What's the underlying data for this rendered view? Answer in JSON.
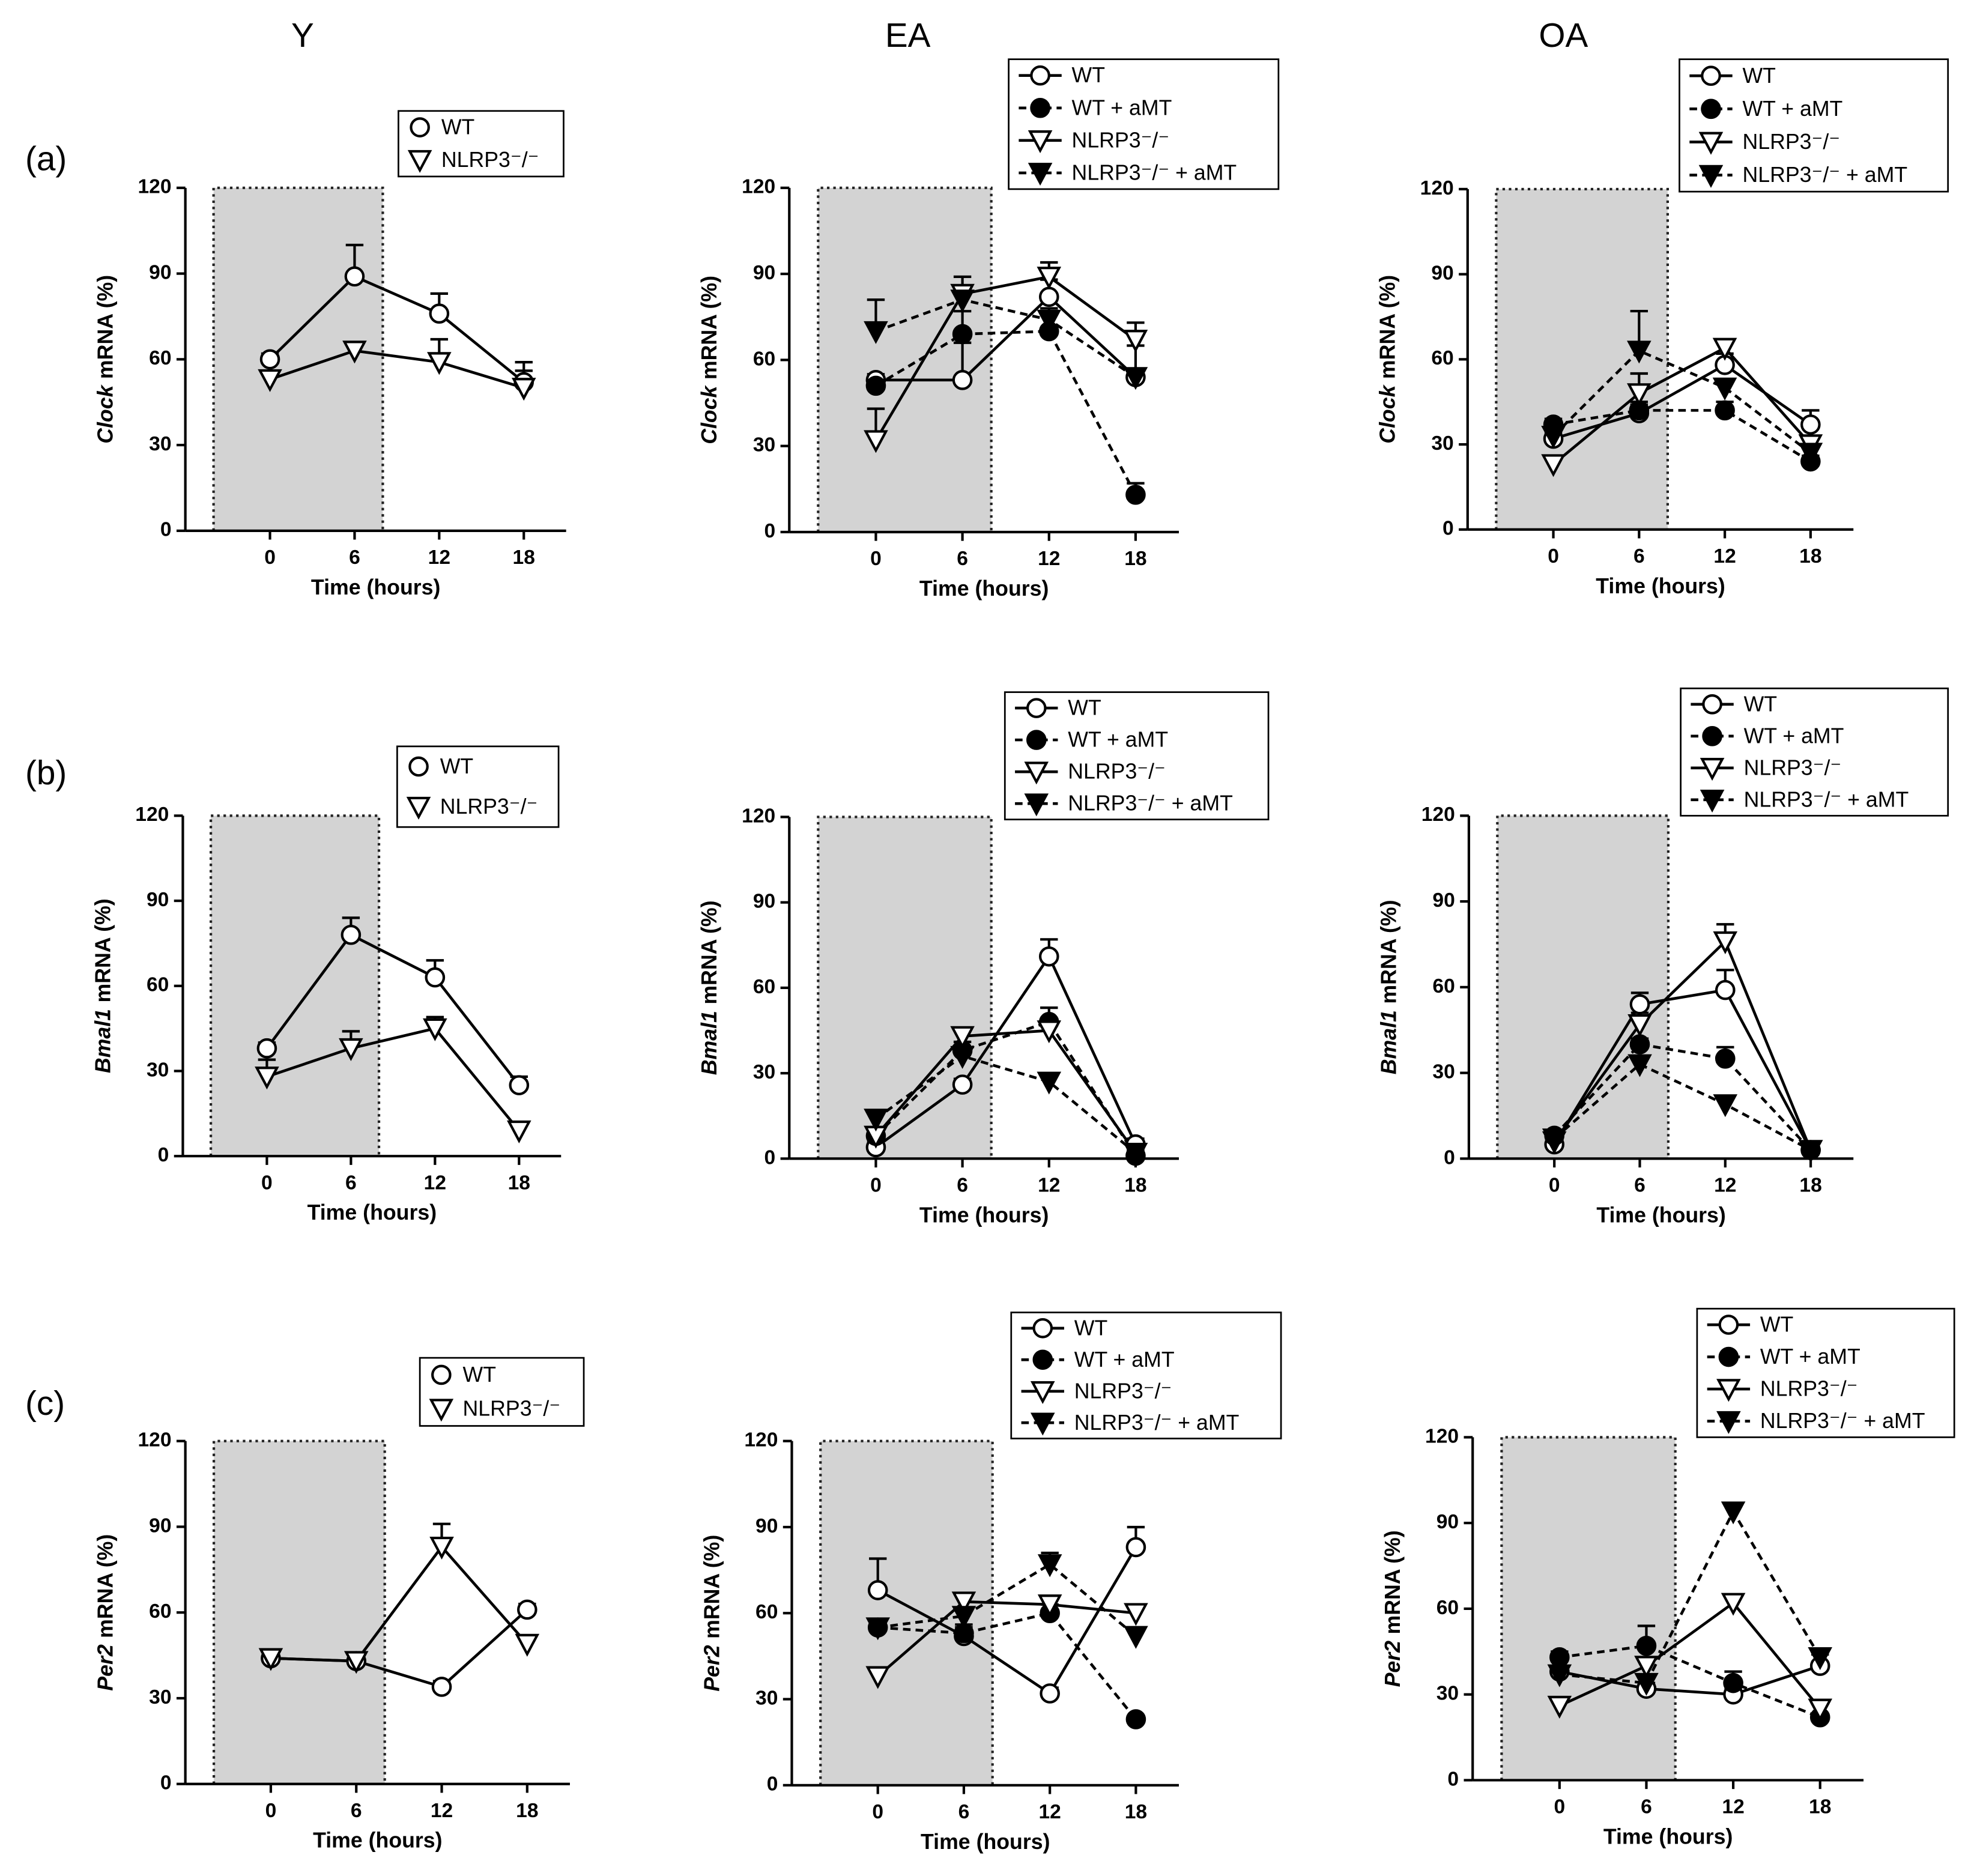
{
  "column_titles": [
    "Y",
    "EA",
    "OA"
  ],
  "panel_labels": [
    "(a)",
    "(b)",
    "(c)"
  ],
  "chart_data": [
    {
      "type": "line",
      "ylabel": [
        "Clock",
        "mRNA (%)"
      ],
      "xlabel": "Time (hours)",
      "x": [
        0,
        6,
        12,
        18
      ],
      "xticks": [
        0,
        6,
        12,
        18
      ],
      "xlim": [
        -6,
        21
      ],
      "ylim": [
        0,
        120
      ],
      "yticks": [
        0,
        30,
        60,
        90,
        120
      ],
      "dark_period": [
        -4,
        8
      ],
      "legend_line": false,
      "series": [
        {
          "name": "WT",
          "color": "#000000",
          "marker": "open-circle",
          "line_style": "solid",
          "values": [
            60,
            89,
            76,
            52
          ],
          "errors": [
            2,
            11,
            7,
            4
          ]
        },
        {
          "name": "NLRP3⁻/⁻",
          "color": "#000000",
          "marker": "open-triangle",
          "line_style": "solid",
          "values": [
            53,
            63,
            59,
            50
          ],
          "errors": [
            2,
            2,
            8,
            9
          ]
        }
      ]
    },
    {
      "type": "line",
      "ylabel": [
        "Clock",
        "mRNA (%)"
      ],
      "xlabel": "Time (hours)",
      "x": [
        0,
        6,
        12,
        18
      ],
      "xticks": [
        0,
        6,
        12,
        18
      ],
      "xlim": [
        -6,
        21
      ],
      "ylim": [
        0,
        120
      ],
      "yticks": [
        0,
        30,
        60,
        90,
        120
      ],
      "dark_period": [
        -4,
        8
      ],
      "legend_line": true,
      "series": [
        {
          "name": "WT",
          "color": "#000000",
          "marker": "open-circle",
          "line_style": "solid",
          "values": [
            53,
            53,
            82,
            54
          ],
          "errors": [
            2,
            13,
            6,
            11
          ]
        },
        {
          "name": "WT + aMT",
          "color": "#000000",
          "marker": "filled-circle",
          "line_style": "dashed",
          "values": [
            51,
            69,
            70,
            13
          ],
          "errors": [
            2,
            8,
            6,
            4
          ]
        },
        {
          "name": "NLRP3⁻/⁻",
          "color": "#000000",
          "marker": "open-triangle",
          "line_style": "solid",
          "values": [
            32,
            83,
            89,
            67
          ],
          "errors": [
            11,
            6,
            5,
            6
          ]
        },
        {
          "name": "NLRP3⁻/⁻ + aMT",
          "color": "#000000",
          "marker": "filled-triangle",
          "line_style": "dashed",
          "values": [
            70,
            81,
            74,
            54
          ],
          "errors": [
            11,
            4,
            4,
            3
          ]
        }
      ]
    },
    {
      "type": "line",
      "ylabel": [
        "Clock",
        "mRNA (%)"
      ],
      "xlabel": "Time (hours)",
      "x": [
        0,
        6,
        12,
        18
      ],
      "xticks": [
        0,
        6,
        12,
        18
      ],
      "xlim": [
        -6,
        21
      ],
      "ylim": [
        0,
        120
      ],
      "yticks": [
        0,
        30,
        60,
        90,
        120
      ],
      "dark_period": [
        -4,
        8
      ],
      "legend_line": true,
      "series": [
        {
          "name": "WT",
          "color": "#000000",
          "marker": "open-circle",
          "line_style": "solid",
          "values": [
            32,
            41,
            58,
            37
          ],
          "errors": [
            2,
            4,
            4,
            5
          ]
        },
        {
          "name": "WT + aMT",
          "color": "#000000",
          "marker": "filled-circle",
          "line_style": "dashed",
          "values": [
            37,
            42,
            42,
            24
          ],
          "errors": [
            2,
            2,
            3,
            2
          ]
        },
        {
          "name": "NLRP3⁻/⁻",
          "color": "#000000",
          "marker": "open-triangle",
          "line_style": "solid",
          "values": [
            23,
            48,
            64,
            30
          ],
          "errors": [
            2,
            7,
            3,
            3
          ]
        },
        {
          "name": "NLRP3⁻/⁻ + aMT",
          "color": "#000000",
          "marker": "filled-triangle",
          "line_style": "dashed",
          "values": [
            33,
            63,
            50,
            27
          ],
          "errors": [
            2,
            14,
            3,
            2
          ]
        }
      ]
    },
    {
      "type": "line",
      "ylabel": [
        "Bmal1",
        "mRNA (%)"
      ],
      "xlabel": "Time (hours)",
      "x": [
        0,
        6,
        12,
        18
      ],
      "xticks": [
        0,
        6,
        12,
        18
      ],
      "xlim": [
        -6,
        21
      ],
      "ylim": [
        0,
        120
      ],
      "yticks": [
        0,
        30,
        60,
        90,
        120
      ],
      "dark_period": [
        -4,
        8
      ],
      "legend_line": false,
      "series": [
        {
          "name": "WT",
          "color": "#000000",
          "marker": "open-circle",
          "line_style": "solid",
          "values": [
            38,
            78,
            63,
            25
          ],
          "errors": [
            2,
            6,
            6,
            3
          ]
        },
        {
          "name": "NLRP3⁻/⁻",
          "color": "#000000",
          "marker": "open-triangle",
          "line_style": "solid",
          "values": [
            28,
            38,
            45,
            9
          ],
          "errors": [
            6,
            6,
            4,
            2
          ]
        }
      ]
    },
    {
      "type": "line",
      "ylabel": [
        "Bmal1",
        "mRNA (%)"
      ],
      "xlabel": "Time (hours)",
      "x": [
        0,
        6,
        12,
        18
      ],
      "xticks": [
        0,
        6,
        12,
        18
      ],
      "xlim": [
        -6,
        21
      ],
      "ylim": [
        0,
        120
      ],
      "yticks": [
        0,
        30,
        60,
        90,
        120
      ],
      "dark_period": [
        -4,
        8
      ],
      "legend_line": true,
      "series": [
        {
          "name": "WT",
          "color": "#000000",
          "marker": "open-circle",
          "line_style": "solid",
          "values": [
            4,
            26,
            71,
            5
          ],
          "errors": [
            2,
            2,
            6,
            2
          ]
        },
        {
          "name": "WT + aMT",
          "color": "#000000",
          "marker": "filled-circle",
          "line_style": "dashed",
          "values": [
            8,
            38,
            48,
            1
          ],
          "errors": [
            2,
            3,
            5,
            1
          ]
        },
        {
          "name": "NLRP3⁻/⁻",
          "color": "#000000",
          "marker": "open-triangle",
          "line_style": "solid",
          "values": [
            8,
            43,
            45,
            2
          ],
          "errors": [
            2,
            2,
            2,
            1
          ]
        },
        {
          "name": "NLRP3⁻/⁻ + aMT",
          "color": "#000000",
          "marker": "filled-triangle",
          "line_style": "dashed",
          "values": [
            14,
            36,
            27,
            2
          ],
          "errors": [
            2,
            2,
            2,
            1
          ]
        }
      ]
    },
    {
      "type": "line",
      "ylabel": [
        "Bmal1",
        "mRNA (%)"
      ],
      "xlabel": "Time (hours)",
      "x": [
        0,
        6,
        12,
        18
      ],
      "xticks": [
        0,
        6,
        12,
        18
      ],
      "xlim": [
        -6,
        21
      ],
      "ylim": [
        0,
        120
      ],
      "yticks": [
        0,
        30,
        60,
        90,
        120
      ],
      "dark_period": [
        -4,
        8
      ],
      "legend_line": true,
      "series": [
        {
          "name": "WT",
          "color": "#000000",
          "marker": "open-circle",
          "line_style": "solid",
          "values": [
            5,
            54,
            59,
            3
          ],
          "errors": [
            2,
            4,
            7,
            1
          ]
        },
        {
          "name": "WT + aMT",
          "color": "#000000",
          "marker": "filled-circle",
          "line_style": "dashed",
          "values": [
            8,
            40,
            35,
            3
          ],
          "errors": [
            2,
            2,
            4,
            1
          ]
        },
        {
          "name": "NLRP3⁻/⁻",
          "color": "#000000",
          "marker": "open-triangle",
          "line_style": "solid",
          "values": [
            6,
            47,
            76,
            3
          ],
          "errors": [
            2,
            4,
            6,
            1
          ]
        },
        {
          "name": "NLRP3⁻/⁻ + aMT",
          "color": "#000000",
          "marker": "filled-triangle",
          "line_style": "dashed",
          "values": [
            7,
            33,
            19,
            3
          ],
          "errors": [
            2,
            2,
            2,
            1
          ]
        }
      ]
    },
    {
      "type": "line",
      "ylabel": [
        "Per2",
        "mRNA (%)"
      ],
      "xlabel": "Time (hours)",
      "x": [
        0,
        6,
        12,
        18
      ],
      "xticks": [
        0,
        6,
        12,
        18
      ],
      "xlim": [
        -6,
        21
      ],
      "ylim": [
        0,
        120
      ],
      "yticks": [
        0,
        30,
        60,
        90,
        120
      ],
      "dark_period": [
        -4,
        8
      ],
      "legend_line": false,
      "series": [
        {
          "name": "WT",
          "color": "#000000",
          "marker": "open-circle",
          "line_style": "solid",
          "values": [
            44,
            43,
            34,
            61
          ],
          "errors": [
            2,
            3,
            2,
            2
          ]
        },
        {
          "name": "NLRP3⁻/⁻",
          "color": "#000000",
          "marker": "open-triangle",
          "line_style": "solid",
          "values": [
            44,
            43,
            83,
            49
          ],
          "errors": [
            2,
            2,
            8,
            3
          ]
        }
      ]
    },
    {
      "type": "line",
      "ylabel": [
        "Per2",
        "mRNA (%)"
      ],
      "xlabel": "Time (hours)",
      "x": [
        0,
        6,
        12,
        18
      ],
      "xticks": [
        0,
        6,
        12,
        18
      ],
      "xlim": [
        -6,
        21
      ],
      "ylim": [
        0,
        120
      ],
      "yticks": [
        0,
        30,
        60,
        90,
        120
      ],
      "dark_period": [
        -4,
        8
      ],
      "legend_line": true,
      "series": [
        {
          "name": "WT",
          "color": "#000000",
          "marker": "open-circle",
          "line_style": "solid",
          "values": [
            68,
            52,
            32,
            83
          ],
          "errors": [
            11,
            4,
            2,
            7
          ]
        },
        {
          "name": "WT + aMT",
          "color": "#000000",
          "marker": "filled-circle",
          "line_style": "dashed",
          "values": [
            55,
            53,
            60,
            23
          ],
          "errors": [
            3,
            2,
            3,
            1
          ]
        },
        {
          "name": "NLRP3⁻/⁻",
          "color": "#000000",
          "marker": "open-triangle",
          "line_style": "solid",
          "values": [
            38,
            64,
            63,
            60
          ],
          "errors": [
            2,
            2,
            2,
            3
          ]
        },
        {
          "name": "NLRP3⁻/⁻ + aMT",
          "color": "#000000",
          "marker": "filled-triangle",
          "line_style": "dashed",
          "values": [
            55,
            59,
            77,
            52
          ],
          "errors": [
            2,
            3,
            4,
            2
          ]
        }
      ]
    },
    {
      "type": "line",
      "ylabel": [
        "Per2",
        "mRNA (%)"
      ],
      "xlabel": "Time (hours)",
      "x": [
        0,
        6,
        12,
        18
      ],
      "xticks": [
        0,
        6,
        12,
        18
      ],
      "xlim": [
        -6,
        21
      ],
      "ylim": [
        0,
        120
      ],
      "yticks": [
        0,
        30,
        60,
        90,
        120
      ],
      "dark_period": [
        -4,
        8
      ],
      "legend_line": true,
      "series": [
        {
          "name": "WT",
          "color": "#000000",
          "marker": "open-circle",
          "line_style": "solid",
          "values": [
            38,
            32,
            30,
            40
          ],
          "errors": [
            2,
            2,
            2,
            4
          ]
        },
        {
          "name": "WT + aMT",
          "color": "#000000",
          "marker": "filled-circle",
          "line_style": "dashed",
          "values": [
            43,
            47,
            34,
            22
          ],
          "errors": [
            2,
            7,
            4,
            1
          ]
        },
        {
          "name": "NLRP3⁻/⁻",
          "color": "#000000",
          "marker": "open-triangle",
          "line_style": "solid",
          "values": [
            26,
            40,
            62,
            25
          ],
          "errors": [
            2,
            3,
            2,
            2
          ]
        },
        {
          "name": "NLRP3⁻/⁻ + aMT",
          "color": "#000000",
          "marker": "filled-triangle",
          "line_style": "dashed",
          "values": [
            37,
            34,
            94,
            43
          ],
          "errors": [
            2,
            2,
            2,
            3
          ]
        }
      ]
    }
  ]
}
